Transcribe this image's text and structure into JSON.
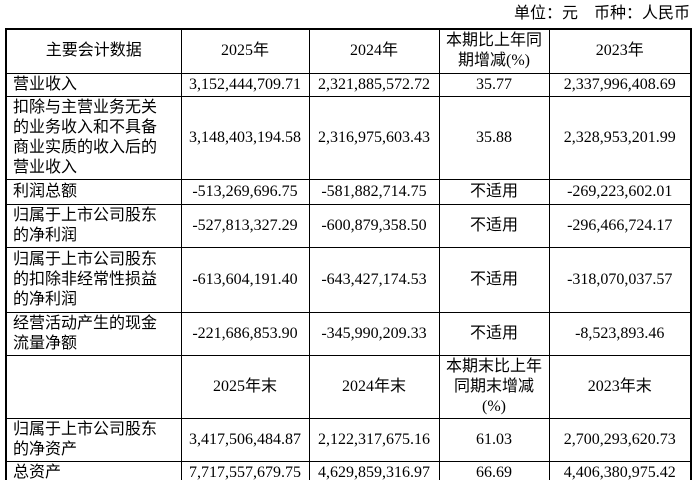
{
  "meta": {
    "unit_label": "单位：元　币种：人民币"
  },
  "table": {
    "header1": {
      "c0": "主要会计数据",
      "c1": "2025年",
      "c2": "2024年",
      "c3": "本期比上年同期增减(%)",
      "c4": "2023年"
    },
    "rows_a": [
      {
        "label": "营业收入",
        "y2025": "3,152,444,709.71",
        "y2024": "2,321,885,572.72",
        "change": "35.77",
        "y2023": "2,337,996,408.69"
      },
      {
        "label": "扣除与主营业务无关的业务收入和不具备商业实质的收入后的营业收入",
        "y2025": "3,148,403,194.58",
        "y2024": "2,316,975,603.43",
        "change": "35.88",
        "y2023": "2,328,953,201.99"
      },
      {
        "label": "利润总额",
        "y2025": "-513,269,696.75",
        "y2024": "-581,882,714.75",
        "change": "不适用",
        "y2023": "-269,223,602.01"
      },
      {
        "label": "归属于上市公司股东的净利润",
        "y2025": "-527,813,327.29",
        "y2024": "-600,879,358.50",
        "change": "不适用",
        "y2023": "-296,466,724.17"
      },
      {
        "label": "归属于上市公司股东的扣除非经常性损益的净利润",
        "y2025": "-613,604,191.40",
        "y2024": "-643,427,174.53",
        "change": "不适用",
        "y2023": "-318,070,037.57"
      },
      {
        "label": "经营活动产生的现金流量净额",
        "y2025": "-221,686,853.90",
        "y2024": "-345,990,209.33",
        "change": "不适用",
        "y2023": "-8,523,893.46"
      }
    ],
    "header2": {
      "c0": "",
      "c1": "2025年末",
      "c2": "2024年末",
      "c3": "本期末比上年同期末增减(%)",
      "c4": "2023年末"
    },
    "rows_b": [
      {
        "label": "归属于上市公司股东的净资产",
        "y2025": "3,417,506,484.87",
        "y2024": "2,122,317,675.16",
        "change": "61.03",
        "y2023": "2,700,293,620.73"
      },
      {
        "label": "总资产",
        "y2025": "7,717,557,679.75",
        "y2024": "4,629,859,316.97",
        "change": "66.69",
        "y2023": "4,406,380,975.42"
      }
    ]
  }
}
